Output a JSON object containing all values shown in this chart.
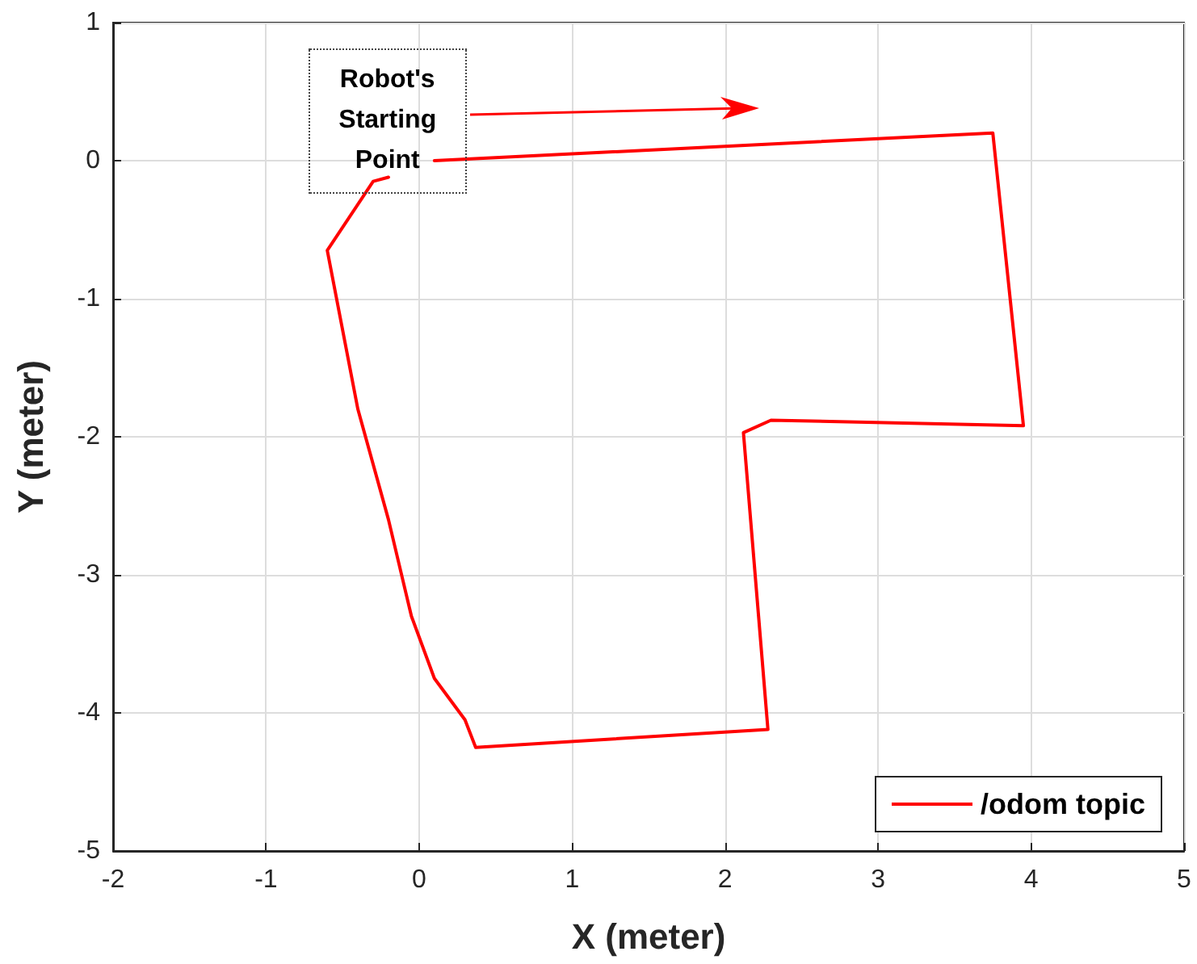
{
  "chart_data": {
    "type": "line",
    "xlabel": "X (meter)",
    "ylabel": "Y (meter)",
    "x": [
      0.1,
      3.75,
      3.95,
      2.3,
      2.12,
      2.28,
      0.37,
      0.3,
      0.1,
      -0.05,
      -0.2,
      -0.4,
      -0.6,
      -0.3,
      -0.2
    ],
    "series": [
      {
        "name": "/odom topic",
        "color": "#ff0000",
        "values": [
          0,
          0.2,
          -1.92,
          -1.88,
          -1.97,
          -4.12,
          -4.25,
          -4.05,
          -3.75,
          -3.3,
          -2.6,
          -1.8,
          -0.65,
          -0.15,
          -0.12
        ]
      }
    ],
    "xlim": [
      -2,
      5
    ],
    "xticks": [
      -2,
      -1,
      0,
      1,
      2,
      3,
      4,
      5
    ],
    "ylim": [
      -5,
      1
    ],
    "yticks": [
      -5,
      -4,
      -3,
      -2,
      -1,
      0,
      1
    ],
    "annotations": [
      {
        "text": "Robot's\nStarting\nPoint",
        "x": 0.1,
        "y": 0
      }
    ],
    "grid": true,
    "legend": "bottom right",
    "marker": "none",
    "line_style": "solid"
  }
}
